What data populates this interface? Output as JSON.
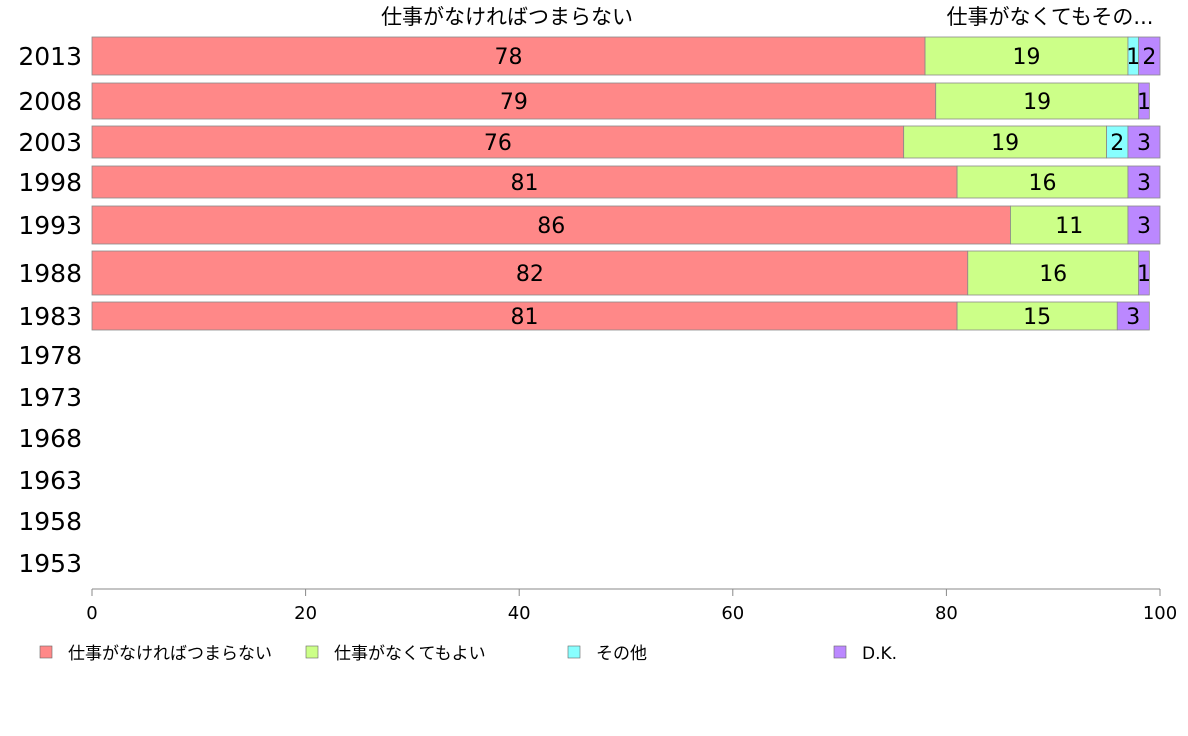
{
  "chart_data": {
    "type": "bar",
    "orientation": "horizontal",
    "stacked": true,
    "categories": [
      "2013",
      "2008",
      "2003",
      "1998",
      "1993",
      "1988",
      "1983",
      "1978",
      "1973",
      "1968",
      "1963",
      "1958",
      "1953"
    ],
    "series": [
      {
        "name": "仕事がなければつまらない",
        "color": "#ff8888",
        "values": [
          78,
          79,
          76,
          81,
          86,
          82,
          81,
          null,
          null,
          null,
          null,
          null,
          null
        ],
        "labels": [
          "78",
          "79",
          "76",
          "81",
          "86",
          "82",
          "81",
          "",
          "",
          "",
          "",
          "",
          ""
        ]
      },
      {
        "name": "仕事がなくてもよい",
        "color": "#ccff88",
        "values": [
          19,
          19,
          19,
          16,
          11,
          16,
          15,
          null,
          null,
          null,
          null,
          null,
          null
        ],
        "labels": [
          "19",
          "19",
          "19",
          "16",
          "11",
          "16",
          "15",
          "",
          "",
          "",
          "",
          "",
          ""
        ]
      },
      {
        "name": "その他",
        "color": "#88ffff",
        "values": [
          1,
          0,
          2,
          0,
          0,
          0,
          0,
          null,
          null,
          null,
          null,
          null,
          null
        ],
        "labels": [
          "1",
          "",
          "2",
          "",
          "",
          "",
          "",
          "",
          "",
          "",
          "",
          "",
          ""
        ]
      },
      {
        "name": "D.K.",
        "color": "#bb88ff",
        "values": [
          2,
          1,
          3,
          3,
          3,
          1,
          3,
          null,
          null,
          null,
          null,
          null,
          null
        ],
        "labels": [
          "2",
          "1",
          "3",
          "3",
          "3",
          "1",
          "3",
          "",
          "",
          "",
          "",
          "",
          ""
        ]
      }
    ],
    "xlim": [
      0,
      100
    ],
    "xticks": [
      "0",
      "20",
      "40",
      "60",
      "80",
      "100"
    ],
    "top_labels": [
      "仕事がなければつまらない",
      "仕事がなくてもその..."
    ],
    "legend_position": "bottom",
    "grid": false
  }
}
